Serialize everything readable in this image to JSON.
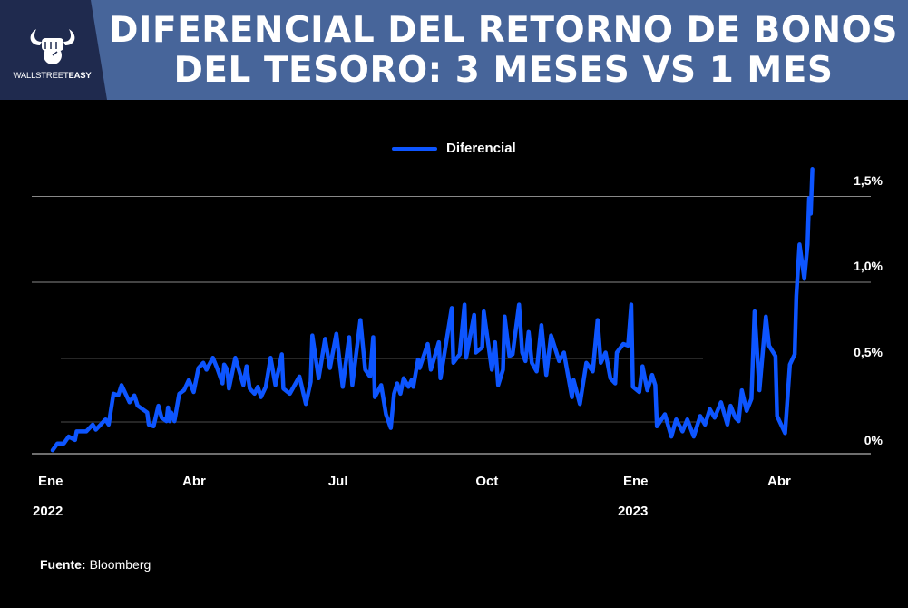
{
  "header": {
    "title_line1": "DIFERENCIAL DEL RETORNO DE BONOS",
    "title_line2": "DEL TESORO: 3 MESES VS 1 MES",
    "logo": {
      "text_light": "WALLSTREET",
      "text_bold": "EASY"
    },
    "colors": {
      "banner": "#47659a",
      "logo_panel": "#1f2a4e"
    }
  },
  "source": {
    "label": "Fuente:",
    "value": "Bloomberg"
  },
  "chart_data": {
    "type": "line",
    "title": "DIFERENCIAL DEL RETORNO DE BONOS DEL TESORO: 3 MESES VS 1 MES",
    "xlabel": "",
    "ylabel": "",
    "ylim": [
      0,
      1.5
    ],
    "y_ticks": [
      {
        "value": 0,
        "label": "0%"
      },
      {
        "value": 0.5,
        "label": "0,5%"
      },
      {
        "value": 1.0,
        "label": "1,0%"
      },
      {
        "value": 1.5,
        "label": "1,5%"
      }
    ],
    "x_ticks": [
      {
        "date": "2022-01-01",
        "label": "Ene",
        "year": "2022"
      },
      {
        "date": "2022-04-01",
        "label": "Abr"
      },
      {
        "date": "2022-07-01",
        "label": "Jul"
      },
      {
        "date": "2022-10-01",
        "label": "Oct"
      },
      {
        "date": "2023-01-01",
        "label": "Ene",
        "year": "2023"
      },
      {
        "date": "2023-04-01",
        "label": "Abr"
      }
    ],
    "grid": true,
    "legend": "top-center",
    "series": [
      {
        "name": "Diferencial",
        "color": "#0d55ff",
        "points": [
          [
            "2022-01-01",
            0.02
          ],
          [
            "2022-01-04",
            0.06
          ],
          [
            "2022-01-08",
            0.06
          ],
          [
            "2022-01-11",
            0.1
          ],
          [
            "2022-01-15",
            0.08
          ],
          [
            "2022-01-16",
            0.13
          ],
          [
            "2022-01-22",
            0.13
          ],
          [
            "2022-01-26",
            0.17
          ],
          [
            "2022-01-28",
            0.14
          ],
          [
            "2022-02-03",
            0.2
          ],
          [
            "2022-02-05",
            0.17
          ],
          [
            "2022-02-08",
            0.35
          ],
          [
            "2022-02-11",
            0.34
          ],
          [
            "2022-02-13",
            0.4
          ],
          [
            "2022-02-18",
            0.3
          ],
          [
            "2022-02-21",
            0.34
          ],
          [
            "2022-02-23",
            0.28
          ],
          [
            "2022-03-01",
            0.24
          ],
          [
            "2022-03-02",
            0.17
          ],
          [
            "2022-03-05",
            0.16
          ],
          [
            "2022-03-08",
            0.28
          ],
          [
            "2022-03-10",
            0.21
          ],
          [
            "2022-03-13",
            0.19
          ],
          [
            "2022-03-14",
            0.27
          ],
          [
            "2022-03-15",
            0.19
          ],
          [
            "2022-03-16",
            0.24
          ],
          [
            "2022-03-18",
            0.19
          ],
          [
            "2022-03-21",
            0.35
          ],
          [
            "2022-03-24",
            0.37
          ],
          [
            "2022-03-27",
            0.43
          ],
          [
            "2022-03-30",
            0.36
          ],
          [
            "2022-04-02",
            0.5
          ],
          [
            "2022-04-05",
            0.53
          ],
          [
            "2022-04-07",
            0.49
          ],
          [
            "2022-04-11",
            0.56
          ],
          [
            "2022-04-14",
            0.49
          ],
          [
            "2022-04-17",
            0.41
          ],
          [
            "2022-04-18",
            0.52
          ],
          [
            "2022-04-20",
            0.49
          ],
          [
            "2022-04-21",
            0.38
          ],
          [
            "2022-04-25",
            0.56
          ],
          [
            "2022-04-30",
            0.4
          ],
          [
            "2022-05-02",
            0.51
          ],
          [
            "2022-05-04",
            0.38
          ],
          [
            "2022-05-07",
            0.35
          ],
          [
            "2022-05-09",
            0.39
          ],
          [
            "2022-05-11",
            0.33
          ],
          [
            "2022-05-14",
            0.39
          ],
          [
            "2022-05-17",
            0.56
          ],
          [
            "2022-05-20",
            0.4
          ],
          [
            "2022-05-24",
            0.58
          ],
          [
            "2022-05-25",
            0.38
          ],
          [
            "2022-05-29",
            0.35
          ],
          [
            "2022-06-04",
            0.45
          ],
          [
            "2022-06-08",
            0.29
          ],
          [
            "2022-06-11",
            0.42
          ],
          [
            "2022-06-12",
            0.69
          ],
          [
            "2022-06-16",
            0.44
          ],
          [
            "2022-06-20",
            0.67
          ],
          [
            "2022-06-23",
            0.5
          ],
          [
            "2022-06-27",
            0.7
          ],
          [
            "2022-07-01",
            0.39
          ],
          [
            "2022-07-05",
            0.68
          ],
          [
            "2022-07-07",
            0.4
          ],
          [
            "2022-07-12",
            0.78
          ],
          [
            "2022-07-15",
            0.49
          ],
          [
            "2022-07-18",
            0.45
          ],
          [
            "2022-07-20",
            0.68
          ],
          [
            "2022-07-21",
            0.33
          ],
          [
            "2022-07-25",
            0.4
          ],
          [
            "2022-07-28",
            0.23
          ],
          [
            "2022-07-31",
            0.15
          ],
          [
            "2022-08-02",
            0.35
          ],
          [
            "2022-08-04",
            0.41
          ],
          [
            "2022-08-06",
            0.35
          ],
          [
            "2022-08-08",
            0.44
          ],
          [
            "2022-08-11",
            0.39
          ],
          [
            "2022-08-13",
            0.43
          ],
          [
            "2022-08-14",
            0.39
          ],
          [
            "2022-08-17",
            0.55
          ],
          [
            "2022-08-18",
            0.5
          ],
          [
            "2022-08-23",
            0.64
          ],
          [
            "2022-08-25",
            0.49
          ],
          [
            "2022-08-30",
            0.65
          ],
          [
            "2022-08-31",
            0.44
          ],
          [
            "2022-09-07",
            0.85
          ],
          [
            "2022-09-08",
            0.53
          ],
          [
            "2022-09-12",
            0.58
          ],
          [
            "2022-09-15",
            0.87
          ],
          [
            "2022-09-16",
            0.56
          ],
          [
            "2022-09-21",
            0.81
          ],
          [
            "2022-09-22",
            0.59
          ],
          [
            "2022-09-26",
            0.62
          ],
          [
            "2022-09-27",
            0.83
          ],
          [
            "2022-10-02",
            0.49
          ],
          [
            "2022-10-04",
            0.65
          ],
          [
            "2022-10-06",
            0.4
          ],
          [
            "2022-10-09",
            0.49
          ],
          [
            "2022-10-10",
            0.8
          ],
          [
            "2022-10-13",
            0.57
          ],
          [
            "2022-10-15",
            0.58
          ],
          [
            "2022-10-19",
            0.87
          ],
          [
            "2022-10-21",
            0.59
          ],
          [
            "2022-10-23",
            0.54
          ],
          [
            "2022-10-25",
            0.71
          ],
          [
            "2022-10-27",
            0.53
          ],
          [
            "2022-10-30",
            0.48
          ],
          [
            "2022-11-02",
            0.75
          ],
          [
            "2022-11-05",
            0.46
          ],
          [
            "2022-11-08",
            0.69
          ],
          [
            "2022-11-13",
            0.54
          ],
          [
            "2022-11-16",
            0.59
          ],
          [
            "2022-11-21",
            0.33
          ],
          [
            "2022-11-22",
            0.43
          ],
          [
            "2022-11-26",
            0.29
          ],
          [
            "2022-11-30",
            0.53
          ],
          [
            "2022-12-04",
            0.48
          ],
          [
            "2022-12-07",
            0.78
          ],
          [
            "2022-12-09",
            0.53
          ],
          [
            "2022-12-12",
            0.59
          ],
          [
            "2022-12-15",
            0.44
          ],
          [
            "2022-12-18",
            0.41
          ],
          [
            "2022-12-19",
            0.59
          ],
          [
            "2022-12-23",
            0.64
          ],
          [
            "2022-12-26",
            0.63
          ],
          [
            "2022-12-28",
            0.87
          ],
          [
            "2022-12-29",
            0.39
          ],
          [
            "2023-01-02",
            0.36
          ],
          [
            "2023-01-04",
            0.51
          ],
          [
            "2023-01-07",
            0.37
          ],
          [
            "2023-01-10",
            0.46
          ],
          [
            "2023-01-12",
            0.4
          ],
          [
            "2023-01-13",
            0.16
          ],
          [
            "2023-01-18",
            0.23
          ],
          [
            "2023-01-22",
            0.1
          ],
          [
            "2023-01-25",
            0.2
          ],
          [
            "2023-01-29",
            0.13
          ],
          [
            "2023-02-01",
            0.2
          ],
          [
            "2023-02-05",
            0.1
          ],
          [
            "2023-02-09",
            0.22
          ],
          [
            "2023-02-12",
            0.17
          ],
          [
            "2023-02-15",
            0.26
          ],
          [
            "2023-02-18",
            0.21
          ],
          [
            "2023-02-22",
            0.3
          ],
          [
            "2023-02-26",
            0.17
          ],
          [
            "2023-02-28",
            0.28
          ],
          [
            "2023-03-03",
            0.21
          ],
          [
            "2023-03-05",
            0.19
          ],
          [
            "2023-03-07",
            0.37
          ],
          [
            "2023-03-10",
            0.25
          ],
          [
            "2023-03-13",
            0.32
          ],
          [
            "2023-03-15",
            0.83
          ],
          [
            "2023-03-18",
            0.37
          ],
          [
            "2023-03-22",
            0.8
          ],
          [
            "2023-03-24",
            0.63
          ],
          [
            "2023-03-28",
            0.57
          ],
          [
            "2023-03-29",
            0.22
          ],
          [
            "2023-04-03",
            0.12
          ],
          [
            "2023-04-06",
            0.52
          ],
          [
            "2023-04-09",
            0.58
          ],
          [
            "2023-04-10",
            0.92
          ],
          [
            "2023-04-12",
            1.22
          ],
          [
            "2023-04-15",
            1.02
          ],
          [
            "2023-04-17",
            1.22
          ],
          [
            "2023-04-18",
            1.49
          ],
          [
            "2023-04-19",
            1.4
          ],
          [
            "2023-04-20",
            1.66
          ]
        ]
      }
    ]
  }
}
